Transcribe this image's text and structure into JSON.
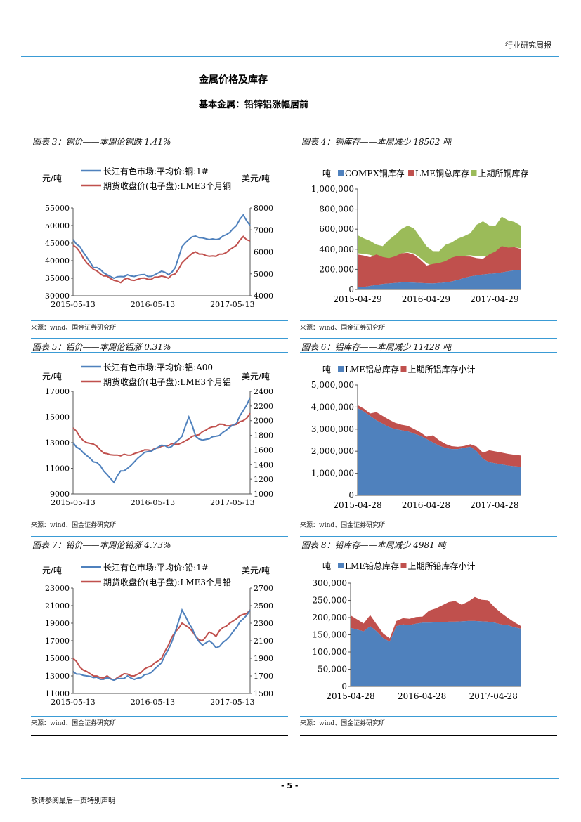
{
  "header": {
    "report_type": "行业研究周报"
  },
  "section": {
    "title": "金属价格及库存",
    "subtitle": "基本金属：铅锌铝涨幅居前"
  },
  "figures": [
    {
      "caption": "图表 3：铜价——本周伦铜跌 1.41%",
      "source": "来源：wind、国金证券研究所"
    },
    {
      "caption": "图表 4：铜库存——本周减少 18562 吨",
      "source": "来源：wind、国金证券研究所"
    },
    {
      "caption": "图表 5：铝价——本周伦铝涨 0.31%",
      "source": "来源：wind、国金证券研究所"
    },
    {
      "caption": "图表 6：铝库存——本周减少 11428 吨",
      "source": "来源：wind、国金证券研究所"
    },
    {
      "caption": "图表 7：铅价——本周伦铅涨 4.73%",
      "source": "来源：wind、国金证券研究所"
    },
    {
      "caption": "图表 8：铅库存——本周减少 4981 吨",
      "source": "来源：wind、国金证券研究所"
    }
  ],
  "footer": {
    "page_number": "- 5 -",
    "disclaimer": "敬请参阅最后一页特别声明"
  },
  "colors": {
    "blue": "#4f81bd",
    "red": "#c0504d",
    "green": "#9bbb59",
    "rule": "#3a9bd5"
  },
  "chart_data": [
    {
      "type": "line",
      "ylabel": "元/吨",
      "y2label": "美元/吨",
      "x_ticks": [
        "2015-05-13",
        "2016-05-13",
        "2017-05-13"
      ],
      "ylim": [
        30000,
        55000
      ],
      "y_ticks": [
        "55000",
        "50000",
        "45000",
        "40000",
        "35000",
        "30000"
      ],
      "y2lim": [
        4000,
        8000
      ],
      "y2_ticks": [
        "8000",
        "7000",
        "6000",
        "5000",
        "4000"
      ],
      "series": [
        {
          "name": "长江有色市场:平均价:铜:1#",
          "axis": "left",
          "values": [
            46000,
            44000,
            41000,
            38000,
            37500,
            36000,
            35000,
            35500,
            36000,
            35500,
            36000,
            35500,
            36000,
            37000,
            36000,
            38000,
            44000,
            46000,
            47000,
            46500,
            46000,
            46000,
            47000,
            48000,
            50000,
            53000,
            50000
          ]
        },
        {
          "name": "期货收盘价(电子盘):LME3个月铜",
          "axis": "right",
          "values": [
            6300,
            6000,
            5500,
            5200,
            5000,
            4900,
            4700,
            4600,
            4800,
            4700,
            4800,
            4750,
            4850,
            4900,
            4800,
            5000,
            5500,
            5800,
            6000,
            5900,
            5800,
            5800,
            5900,
            6100,
            6300,
            6700,
            6500
          ]
        }
      ]
    },
    {
      "type": "area",
      "ylabel": "吨",
      "x_ticks": [
        "2015-04-29",
        "2016-04-29",
        "2017-04-29"
      ],
      "ylim": [
        0,
        1000000
      ],
      "y_ticks": [
        "1,000,000",
        "800,000",
        "600,000",
        "400,000",
        "200,000",
        "0"
      ],
      "series": [
        {
          "name": "COMEX铜库存",
          "values": [
            20000,
            25000,
            35000,
            45000,
            55000,
            60000,
            65000,
            70000,
            70000,
            68000,
            65000,
            62000,
            60000,
            65000,
            70000,
            80000,
            95000,
            115000,
            130000,
            140000,
            150000,
            155000,
            160000,
            170000,
            180000,
            190000,
            190000
          ]
        },
        {
          "name": "LME铜总库存",
          "values": [
            340000,
            330000,
            310000,
            280000,
            250000,
            240000,
            260000,
            290000,
            300000,
            290000,
            250000,
            200000,
            170000,
            180000,
            200000,
            230000,
            240000,
            220000,
            210000,
            190000,
            180000,
            170000,
            200000,
            250000,
            230000,
            230000,
            220000
          ]
        },
        {
          "name": "上期所铜库存",
          "values": [
            180000,
            160000,
            150000,
            140000,
            150000,
            170000,
            200000,
            230000,
            260000,
            250000,
            210000,
            180000,
            170000,
            160000,
            150000,
            140000,
            160000,
            190000,
            220000,
            320000,
            360000,
            330000,
            300000,
            280000,
            260000,
            240000,
            220000
          ]
        }
      ]
    },
    {
      "type": "line",
      "ylabel": "元/吨",
      "y2label": "美元/吨",
      "x_ticks": [
        "2015-05-13",
        "2016-05-13",
        "2017-05-13"
      ],
      "ylim": [
        9000,
        17000
      ],
      "y_ticks": [
        "17000",
        "15000",
        "13000",
        "11000",
        "9000"
      ],
      "y2lim": [
        1000,
        2400
      ],
      "y2_ticks": [
        "2400",
        "2200",
        "2000",
        "1800",
        "1600",
        "1400",
        "1200",
        "1000"
      ],
      "series": [
        {
          "name": "长江有色市场:平均价:铝:A00",
          "axis": "left",
          "values": [
            13000,
            12500,
            12000,
            11500,
            11200,
            10500,
            9900,
            10800,
            11000,
            11500,
            12000,
            12300,
            12500,
            12800,
            12600,
            13000,
            13500,
            15000,
            13500,
            13200,
            13300,
            13500,
            13800,
            14200,
            14500,
            15500,
            16500
          ]
        },
        {
          "name": "期货收盘价(电子盘):LME3个月铝",
          "axis": "right",
          "values": [
            1900,
            1780,
            1700,
            1680,
            1600,
            1550,
            1530,
            1520,
            1530,
            1550,
            1580,
            1600,
            1620,
            1650,
            1660,
            1680,
            1700,
            1750,
            1800,
            1850,
            1900,
            1920,
            1950,
            1930,
            1950,
            2000,
            2100
          ]
        }
      ]
    },
    {
      "type": "area",
      "ylabel": "吨",
      "x_ticks": [
        "2015-04-28",
        "2016-04-28",
        "2017-04-28"
      ],
      "ylim": [
        0,
        5000000
      ],
      "y_ticks": [
        "5,000,000",
        "4,000,000",
        "3,000,000",
        "2,000,000",
        "1,000,000",
        "0"
      ],
      "series": [
        {
          "name": "LME铝总库存",
          "values": [
            3950000,
            3800000,
            3600000,
            3400000,
            3250000,
            3100000,
            3000000,
            2950000,
            2900000,
            2800000,
            2700000,
            2550000,
            2400000,
            2250000,
            2150000,
            2100000,
            2100000,
            2150000,
            2200000,
            2000000,
            1650000,
            1500000,
            1450000,
            1400000,
            1350000,
            1320000,
            1300000
          ]
        },
        {
          "name": "上期所铝库存小计",
          "values": [
            200000,
            220000,
            230000,
            250000,
            260000,
            270000,
            260000,
            250000,
            280000,
            270000,
            250000,
            230000,
            200000,
            160000,
            120000,
            100000,
            100000,
            120000,
            180000,
            300000,
            400000,
            420000,
            450000,
            480000,
            500000,
            520000,
            540000
          ]
        }
      ]
    },
    {
      "type": "line",
      "ylabel": "元/吨",
      "y2label": "美元/吨",
      "x_ticks": [
        "2015-05-13",
        "2016-05-13",
        "2017-05-13"
      ],
      "ylim": [
        11000,
        23000
      ],
      "y_ticks": [
        "23000",
        "21000",
        "19000",
        "17000",
        "15000",
        "13000",
        "11000"
      ],
      "y2lim": [
        1500,
        2700
      ],
      "y2_ticks": [
        "2700",
        "2500",
        "2300",
        "2100",
        "1900",
        "1700",
        "1500"
      ],
      "series": [
        {
          "name": "长江有色市场:平均价:铅:1#",
          "axis": "left",
          "values": [
            13500,
            13200,
            13000,
            12800,
            12600,
            12800,
            12500,
            12700,
            13000,
            12600,
            12800,
            13200,
            13800,
            14500,
            16000,
            18000,
            20500,
            19000,
            17500,
            16500,
            17000,
            16200,
            16800,
            17500,
            18500,
            19500,
            20500
          ]
        },
        {
          "name": "期货收盘价(电子盘):LME3个月铅",
          "axis": "right",
          "values": [
            1900,
            1800,
            1750,
            1700,
            1680,
            1700,
            1650,
            1700,
            1720,
            1700,
            1740,
            1800,
            1850,
            1900,
            2050,
            2200,
            2300,
            2250,
            2150,
            2100,
            2200,
            2150,
            2250,
            2300,
            2350,
            2400,
            2450
          ]
        }
      ]
    },
    {
      "type": "area",
      "ylabel": "吨",
      "x_ticks": [
        "2015-04-28",
        "2016-04-28",
        "2017-04-28"
      ],
      "ylim": [
        0,
        300000
      ],
      "y_ticks": [
        "300,000",
        "250,000",
        "200,000",
        "150,000",
        "100,000",
        "50,000",
        "0"
      ],
      "series": [
        {
          "name": "LME铅总库存",
          "values": [
            170000,
            165000,
            160000,
            175000,
            160000,
            140000,
            130000,
            175000,
            180000,
            178000,
            182000,
            185000,
            185000,
            186000,
            187000,
            188000,
            188000,
            189000,
            190000,
            190000,
            189000,
            188000,
            185000,
            180000,
            178000,
            172000,
            168000
          ]
        },
        {
          "name": "上期所铅库存小计",
          "values": [
            40000,
            35000,
            30000,
            25000,
            15000,
            10000,
            8000,
            15000,
            20000,
            22000,
            25000,
            25000,
            28000,
            35000,
            45000,
            55000,
            60000,
            50000,
            60000,
            75000,
            70000,
            55000,
            40000,
            30000,
            20000,
            15000,
            10000
          ]
        }
      ]
    }
  ]
}
